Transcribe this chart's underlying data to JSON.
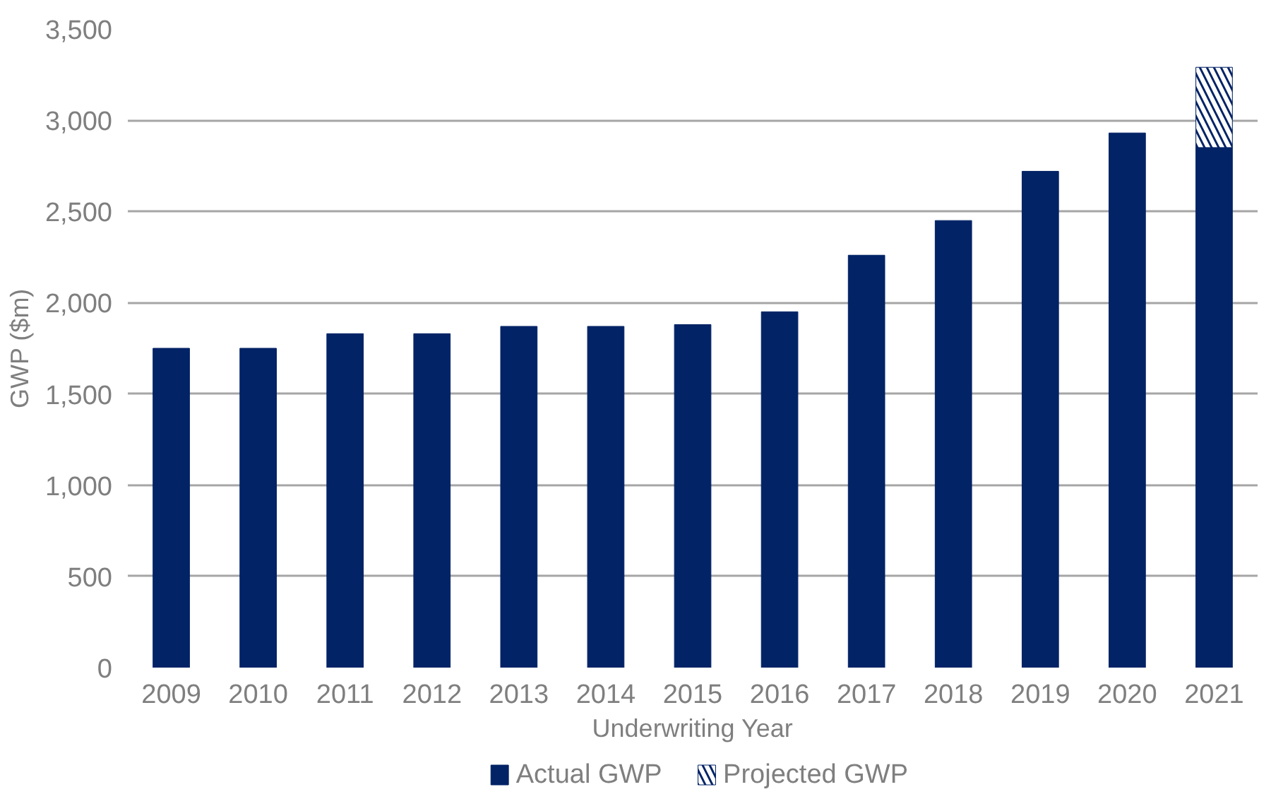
{
  "chart_data": {
    "type": "bar",
    "stacked": true,
    "xlabel": "Underwriting Year",
    "ylabel": "GWP ($m)",
    "categories": [
      "2009",
      "2010",
      "2011",
      "2012",
      "2013",
      "2014",
      "2015",
      "2016",
      "2017",
      "2018",
      "2019",
      "2020",
      "2021"
    ],
    "series": [
      {
        "name": "Actual GWP",
        "color": "#022366",
        "values": [
          1750,
          1750,
          1830,
          1830,
          1870,
          1870,
          1880,
          1950,
          2260,
          2450,
          2720,
          2930,
          2850
        ]
      },
      {
        "name": "Projected GWP",
        "color": "#022366",
        "values": [
          null,
          null,
          null,
          null,
          null,
          null,
          null,
          null,
          null,
          null,
          null,
          null,
          440
        ]
      }
    ],
    "ylim": [
      0,
      3500
    ],
    "yticks": [
      {
        "value": 0,
        "label": "0"
      },
      {
        "value": 500,
        "label": "500"
      },
      {
        "value": 1000,
        "label": "1,000"
      },
      {
        "value": 1500,
        "label": "1,500"
      },
      {
        "value": 2000,
        "label": "2,000"
      },
      {
        "value": 2500,
        "label": "2,500"
      },
      {
        "value": 3000,
        "label": "3,000"
      },
      {
        "value": 3500,
        "label": "3,500"
      }
    ],
    "grid": "y",
    "legend": "bottom"
  }
}
